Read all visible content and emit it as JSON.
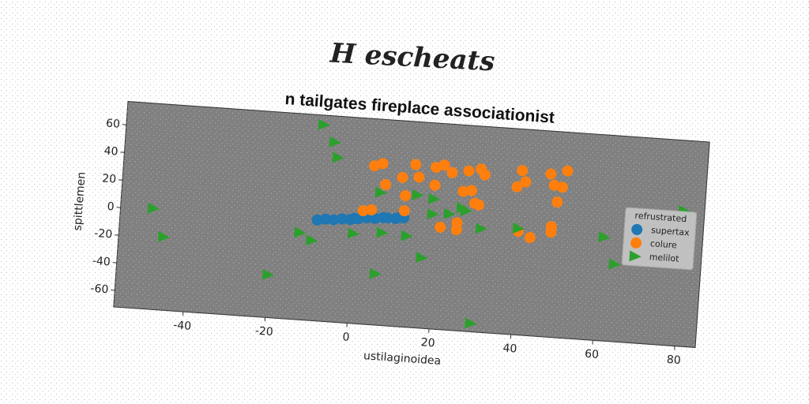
{
  "chart_data": {
    "type": "scatter",
    "suptitle": "H escheats",
    "title": "n tailgates fireplace associationist",
    "xlabel": "ustilaginoidea",
    "ylabel": "spittlemen",
    "xlim": [
      -57,
      85
    ],
    "ylim": [
      -72,
      77
    ],
    "xticks": [
      -40,
      -20,
      0,
      20,
      40,
      60,
      80
    ],
    "yticks": [
      -60,
      -40,
      -20,
      0,
      20,
      40,
      60
    ],
    "legend": {
      "title": "refrustrated",
      "loc": "center right"
    },
    "series": [
      {
        "name": "supertax",
        "color": "#1f77b4",
        "marker": "circle",
        "x": [
          -9,
          -7,
          -5,
          -3,
          -1,
          0,
          1,
          3,
          5,
          7,
          8,
          10,
          11,
          12
        ],
        "y": [
          1,
          2,
          2,
          3,
          3,
          4,
          4,
          5,
          5,
          6,
          6,
          6,
          7,
          7
        ]
      },
      {
        "name": "colure",
        "color": "#ff7f0e",
        "marker": "circle",
        "x": [
          4,
          6,
          2,
          4,
          7,
          11,
          14,
          12,
          12,
          15,
          19,
          21,
          23,
          19,
          27,
          30,
          31,
          28,
          26,
          29,
          30,
          21,
          25,
          25,
          40,
          39,
          41,
          47,
          51,
          48,
          50,
          49,
          40,
          43,
          48,
          48
        ],
        "y": [
          43,
          45,
          10,
          11,
          30,
          36,
          46,
          23,
          12,
          37,
          45,
          47,
          42,
          32,
          44,
          46,
          42,
          30,
          29,
          21,
          20,
          2,
          6,
          1,
          47,
          35,
          39,
          46,
          49,
          38,
          37,
          26,
          3,
          -1,
          8,
          4
        ]
      },
      {
        "name": "melilot",
        "color": "#2ca02c",
        "marker": "triangle-right",
        "x": [
          -49,
          -46,
          -20,
          -13,
          -10,
          -9,
          -6,
          -5,
          0,
          6,
          6,
          7,
          13,
          15,
          17,
          19,
          19,
          23,
          26,
          27,
          31,
          30,
          40,
          61,
          64,
          80
        ],
        "y": [
          1,
          -19,
          -41,
          -9,
          -14,
          70,
          58,
          47,
          -7,
          -35,
          24,
          -5,
          -6,
          24,
          -21,
          22,
          11,
          12,
          17,
          15,
          3,
          -66,
          5,
          3,
          -16,
          26
        ]
      }
    ]
  }
}
